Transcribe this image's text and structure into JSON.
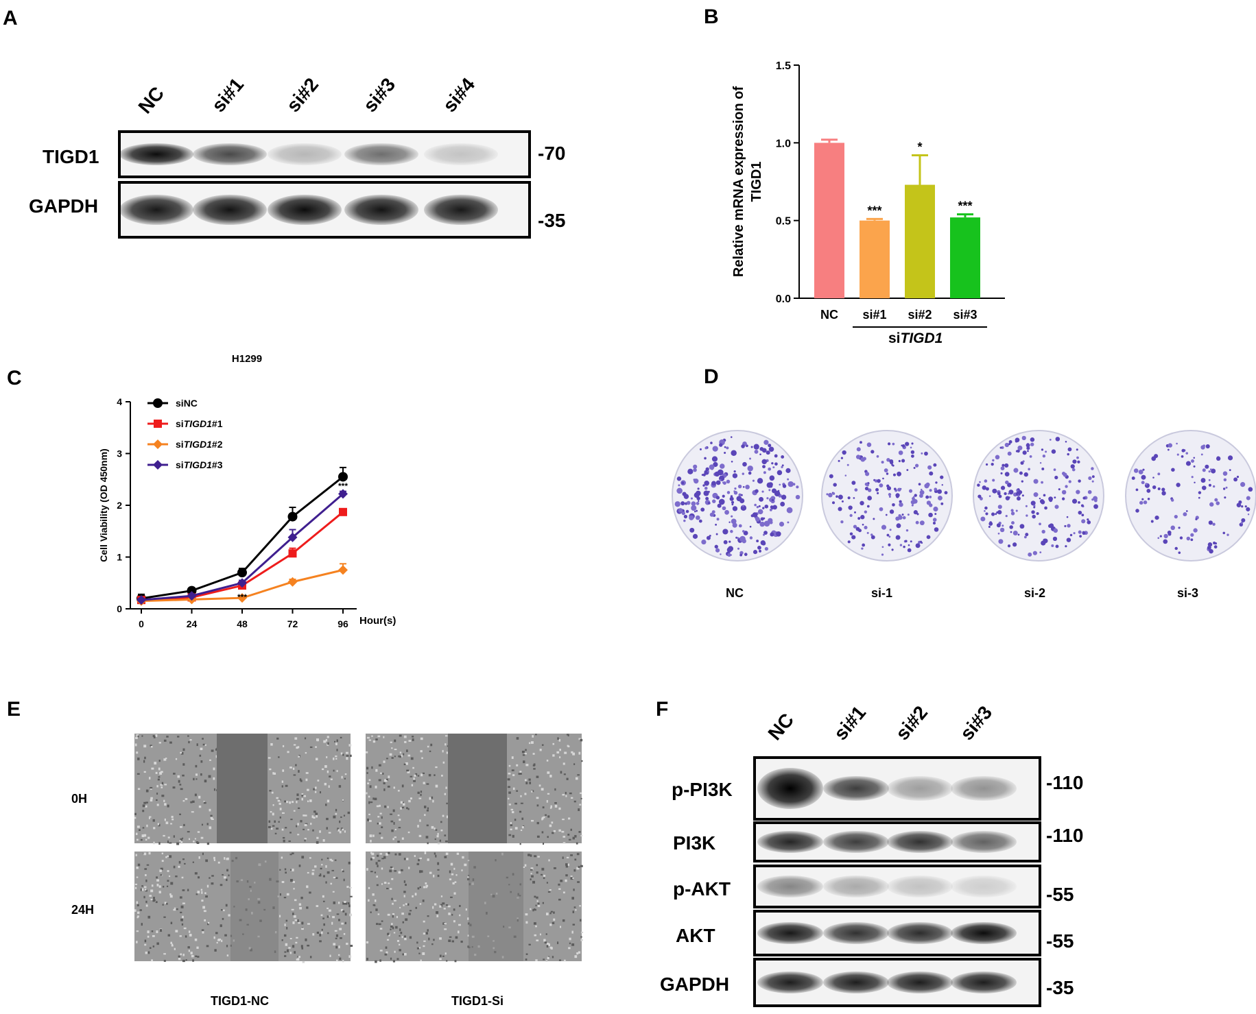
{
  "panels": {
    "A": {
      "letter": "A",
      "lanes": [
        "NC",
        "si#1",
        "si#2",
        "si#3",
        "si#4"
      ],
      "rows": [
        {
          "label": "TIGD1",
          "mw": "-70",
          "intensities": [
            0.95,
            0.7,
            0.25,
            0.55,
            0.2
          ]
        },
        {
          "label": "GAPDH",
          "mw": "-35",
          "intensities": [
            0.9,
            0.92,
            0.95,
            0.92,
            0.9
          ]
        }
      ]
    },
    "B": {
      "letter": "B",
      "group_label_prefix": "si",
      "group_label_italic": "TIGD1"
    },
    "C": {
      "letter": "C",
      "cell_line": "H1299"
    },
    "D": {
      "letter": "D",
      "labels": [
        "NC",
        "si-1",
        "si-2",
        "si-3"
      ],
      "densities": [
        1.0,
        0.7,
        0.75,
        0.45
      ]
    },
    "E": {
      "letter": "E",
      "row_labels": [
        "0H",
        "24H"
      ],
      "col_labels": [
        "TIGD1-NC",
        "TIGD1-Si"
      ]
    },
    "F": {
      "letter": "F",
      "lanes": [
        "NC",
        "si#1",
        "si#2",
        "si#3"
      ],
      "rows": [
        {
          "label": "p-PI3K",
          "mw": "-110",
          "intensities": [
            1.0,
            0.75,
            0.35,
            0.4
          ]
        },
        {
          "label": "PI3K",
          "mw": "-110",
          "intensities": [
            0.85,
            0.75,
            0.8,
            0.6
          ]
        },
        {
          "label": "p-AKT",
          "mw": "-55",
          "intensities": [
            0.45,
            0.3,
            0.2,
            0.15
          ]
        },
        {
          "label": "AKT",
          "mw": "-55",
          "intensities": [
            0.9,
            0.8,
            0.82,
            0.95
          ]
        },
        {
          "label": "GAPDH",
          "mw": "-35",
          "intensities": [
            0.88,
            0.88,
            0.88,
            0.88
          ]
        }
      ]
    }
  },
  "chart_data": [
    {
      "type": "bar",
      "panel": "B",
      "categories": [
        "NC",
        "si#1",
        "si#2",
        "si#3"
      ],
      "values": [
        1.0,
        0.5,
        0.73,
        0.52
      ],
      "errors": [
        0.02,
        0.01,
        0.19,
        0.02
      ],
      "significance": [
        "",
        "***",
        "*",
        "***"
      ],
      "colors": [
        "#f77f80",
        "#fba44c",
        "#c4c41a",
        "#17c21d"
      ],
      "ylabel_lines": [
        "Relative mRNA expression of",
        "TIGD1"
      ],
      "xlabel": "",
      "ylim": [
        0,
        1.5
      ],
      "yticks": [
        "0.0",
        "0.5",
        "1.0",
        "1.5"
      ]
    },
    {
      "type": "line",
      "panel": "C",
      "title": "H1299",
      "x": [
        0,
        24,
        48,
        72,
        96
      ],
      "xticks": [
        "0",
        "24",
        "48",
        "72",
        "96"
      ],
      "xlabel": "Hour(s)",
      "ylabel": "Cell Viability (OD 450nm)",
      "ylim": [
        0,
        4
      ],
      "yticks": [
        "0",
        "1",
        "2",
        "3",
        "4"
      ],
      "legend_position": "top-left",
      "series": [
        {
          "name_prefix": "si",
          "name_italic": "",
          "name_suffix": "NC",
          "marker": "circle",
          "color": "#000000",
          "values": [
            0.2,
            0.35,
            0.7,
            1.78,
            2.55
          ],
          "errors": [
            0.08,
            0.03,
            0.08,
            0.18,
            0.18
          ]
        },
        {
          "name_prefix": "si",
          "name_italic": "TIGD1",
          "name_suffix": "#1",
          "marker": "square",
          "color": "#ee1c1c",
          "values": [
            0.17,
            0.22,
            0.45,
            1.07,
            1.87
          ],
          "errors": [
            0.03,
            0.03,
            0.05,
            0.1,
            0.05
          ]
        },
        {
          "name_prefix": "si",
          "name_italic": "TIGD1",
          "name_suffix": "#2",
          "marker": "diamond",
          "color": "#f58220",
          "values": [
            0.15,
            0.18,
            0.21,
            0.52,
            0.75
          ],
          "errors": [
            0.03,
            0.02,
            0.03,
            0.05,
            0.12
          ]
        },
        {
          "name_prefix": "si",
          "name_italic": "TIGD1",
          "name_suffix": "#3",
          "marker": "diamond",
          "color": "#3f1f8f",
          "values": [
            0.17,
            0.25,
            0.5,
            1.38,
            2.22
          ],
          "errors": [
            0.03,
            0.03,
            0.05,
            0.15,
            0.05
          ]
        }
      ],
      "annotations": [
        {
          "x": 48,
          "text": "***"
        },
        {
          "x": 72,
          "text": "**"
        },
        {
          "x": 96,
          "text": "***"
        }
      ]
    }
  ]
}
